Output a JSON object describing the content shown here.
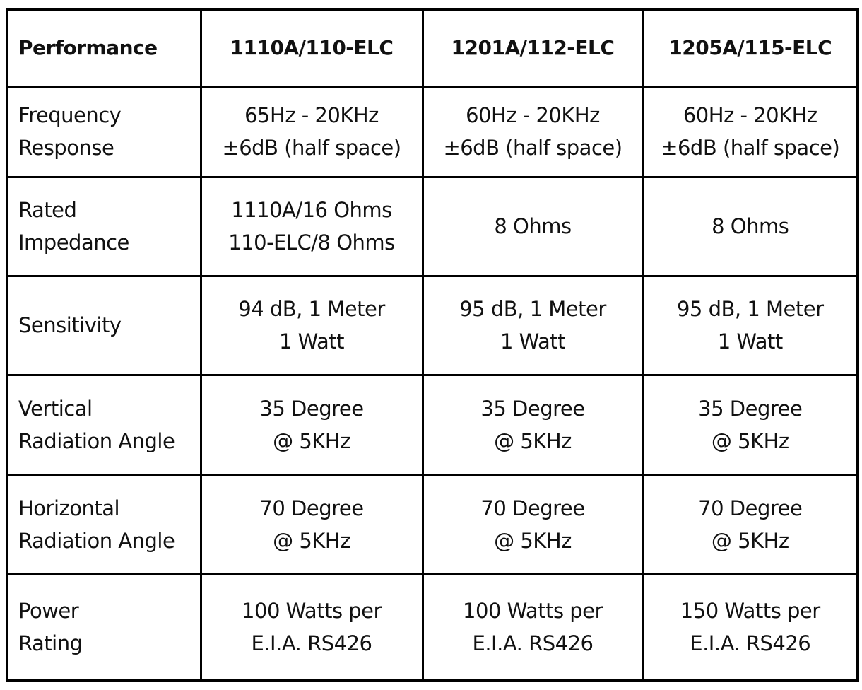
{
  "table": {
    "header": [
      "Performance",
      "1110A/110-ELC",
      "1201A/112-ELC",
      "1205A/115-ELC"
    ],
    "rows": [
      [
        [
          "Frequency",
          "Response"
        ],
        [
          "65Hz - 20KHz",
          "±6dB (half space)"
        ],
        [
          "60Hz - 20KHz",
          "±6dB (half space)"
        ],
        [
          "60Hz - 20KHz",
          "±6dB (half space)"
        ]
      ],
      [
        [
          "Rated",
          "Impedance"
        ],
        [
          "1110A/16 Ohms",
          "110-ELC/8 Ohms"
        ],
        [
          "8 Ohms"
        ],
        [
          "8 Ohms"
        ]
      ],
      [
        [
          "Sensitivity"
        ],
        [
          "94 dB, 1 Meter",
          "1 Watt"
        ],
        [
          "95 dB, 1 Meter",
          "1 Watt"
        ],
        [
          "95 dB, 1 Meter",
          "1 Watt"
        ]
      ],
      [
        [
          "Vertical",
          "Radiation Angle"
        ],
        [
          "35 Degree",
          "@ 5KHz"
        ],
        [
          "35 Degree",
          "@ 5KHz"
        ],
        [
          "35 Degree",
          "@ 5KHz"
        ]
      ],
      [
        [
          "Horizontal",
          "Radiation Angle"
        ],
        [
          "70 Degree",
          "@ 5KHz"
        ],
        [
          "70 Degree",
          "@ 5KHz"
        ],
        [
          "70 Degree",
          "@ 5KHz"
        ]
      ],
      [
        [
          "Power",
          "Rating"
        ],
        [
          "100 Watts per",
          "E.I.A. RS426"
        ],
        [
          "100 Watts per",
          "E.I.A. RS426"
        ],
        [
          "150 Watts per",
          "E.I.A. RS426"
        ]
      ]
    ]
  }
}
